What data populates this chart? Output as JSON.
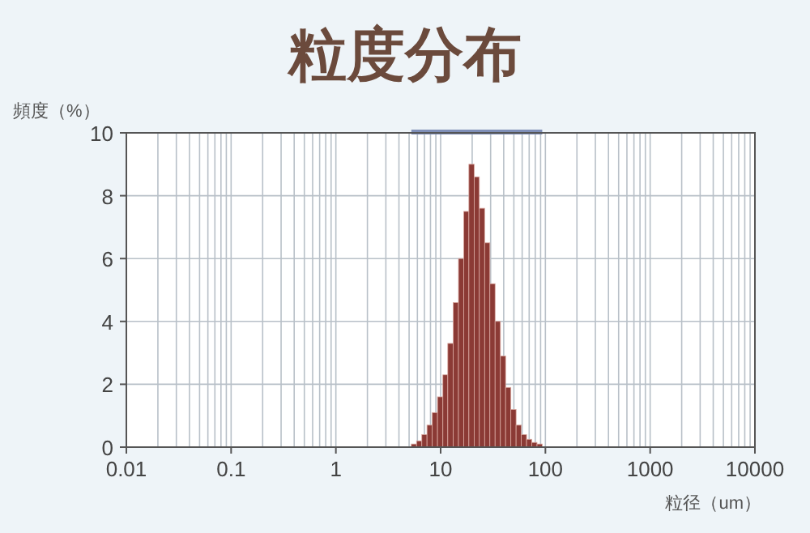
{
  "chart_data": {
    "type": "histogram",
    "title": "粒度分布",
    "ylabel": "頻度（%）",
    "xlabel": "粒径（um）",
    "bins": [
      5.25,
      5.89,
      6.61,
      7.41,
      8.32,
      9.33,
      10.5,
      11.7,
      13.2,
      14.8,
      16.6,
      18.6,
      20.9,
      23.4,
      26.3,
      29.5,
      33.1,
      37.2,
      41.7,
      46.8,
      52.5,
      58.9,
      66.1,
      74.1,
      83.2,
      93.3
    ],
    "values": [
      0.1,
      0.2,
      0.4,
      0.7,
      1.1,
      1.6,
      2.3,
      3.3,
      4.6,
      6.0,
      7.5,
      9.0,
      8.6,
      7.6,
      6.5,
      5.2,
      4.0,
      2.9,
      1.9,
      1.2,
      0.7,
      0.4,
      0.25,
      0.15,
      0.1
    ],
    "color": "#8b3a35",
    "log": "x",
    "xlim": [
      0.01,
      10000
    ],
    "ylim": [
      0,
      10
    ],
    "xticks": [
      0.01,
      0.1,
      1,
      10,
      100,
      1000,
      10000
    ],
    "yticks": [
      0,
      2,
      4,
      6,
      8,
      10
    ],
    "grid": true
  }
}
